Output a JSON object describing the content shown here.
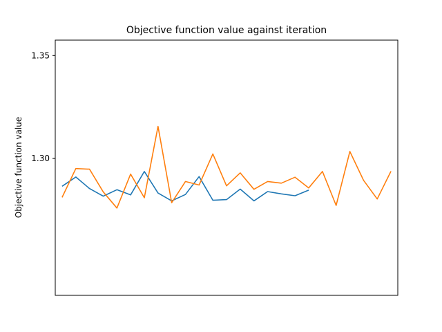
{
  "chart_data": {
    "type": "line",
    "title": "Objective function value against iteration",
    "xlabel": "",
    "ylabel": "Objective function value",
    "xlim": [
      -0.5,
      24.5
    ],
    "ylim": [
      1.2335,
      1.3575
    ],
    "yticks": [
      1.3,
      1.35
    ],
    "ytick_labels": [
      "1.30",
      "1.35"
    ],
    "x_ticks_visible": false,
    "grid": false,
    "series": [
      {
        "color": "#1f77b4",
        "x": [
          0,
          1,
          2,
          3,
          4,
          5,
          6,
          7,
          8,
          9,
          10,
          11,
          12,
          13,
          14,
          15,
          16,
          17,
          18
        ],
        "values": [
          1.2865,
          1.291,
          1.2854,
          1.2817,
          1.2848,
          1.2823,
          1.2937,
          1.2832,
          1.2794,
          1.2825,
          1.2912,
          1.2797,
          1.28,
          1.2851,
          1.2794,
          1.2839,
          1.2828,
          1.2819,
          1.2846
        ]
      },
      {
        "color": "#ff7f0e",
        "x": [
          0,
          1,
          2,
          3,
          4,
          5,
          6,
          7,
          8,
          9,
          10,
          11,
          12,
          13,
          14,
          15,
          16,
          17,
          18,
          19,
          20,
          21,
          22,
          23,
          24
        ],
        "values": [
          1.2811,
          1.2951,
          1.2948,
          1.2838,
          1.2759,
          1.2924,
          1.2809,
          1.3156,
          1.2785,
          1.2888,
          1.2871,
          1.3022,
          1.2867,
          1.293,
          1.285,
          1.2888,
          1.288,
          1.2909,
          1.2857,
          1.2937,
          1.2772,
          1.3034,
          1.2894,
          1.2803,
          1.2938
        ]
      }
    ]
  }
}
